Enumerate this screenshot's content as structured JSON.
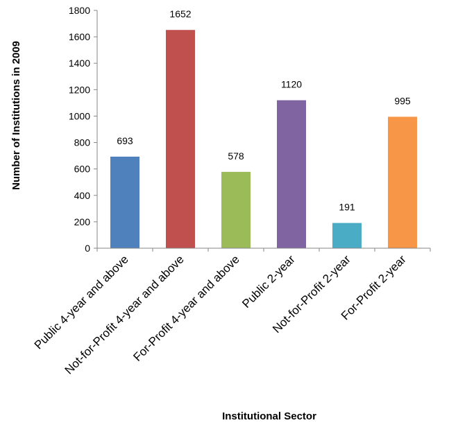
{
  "chart_data": {
    "type": "bar",
    "title": "",
    "xlabel": "Institutional Sector",
    "ylabel": "Number of Institutions in 2009",
    "categories": [
      "Public 4-year and above",
      "Not-for-Profit 4-year and above",
      "For-Profit 4-year and above",
      "Public 2-year",
      "Not-for-Profit 2-year",
      "For-Profit 2-year"
    ],
    "values": [
      693,
      1652,
      578,
      1120,
      191,
      995
    ],
    "data_labels": [
      "693",
      "1652",
      "578",
      "1120",
      "191",
      "995"
    ],
    "colors": [
      "#4f81bd",
      "#c0504d",
      "#9bbb59",
      "#8064a2",
      "#4bacc6",
      "#f79646"
    ],
    "ylim": [
      0,
      1800
    ],
    "yticks": [
      0,
      200,
      400,
      600,
      800,
      1000,
      1200,
      1400,
      1600,
      1800
    ],
    "grid": false,
    "legend": "none"
  }
}
